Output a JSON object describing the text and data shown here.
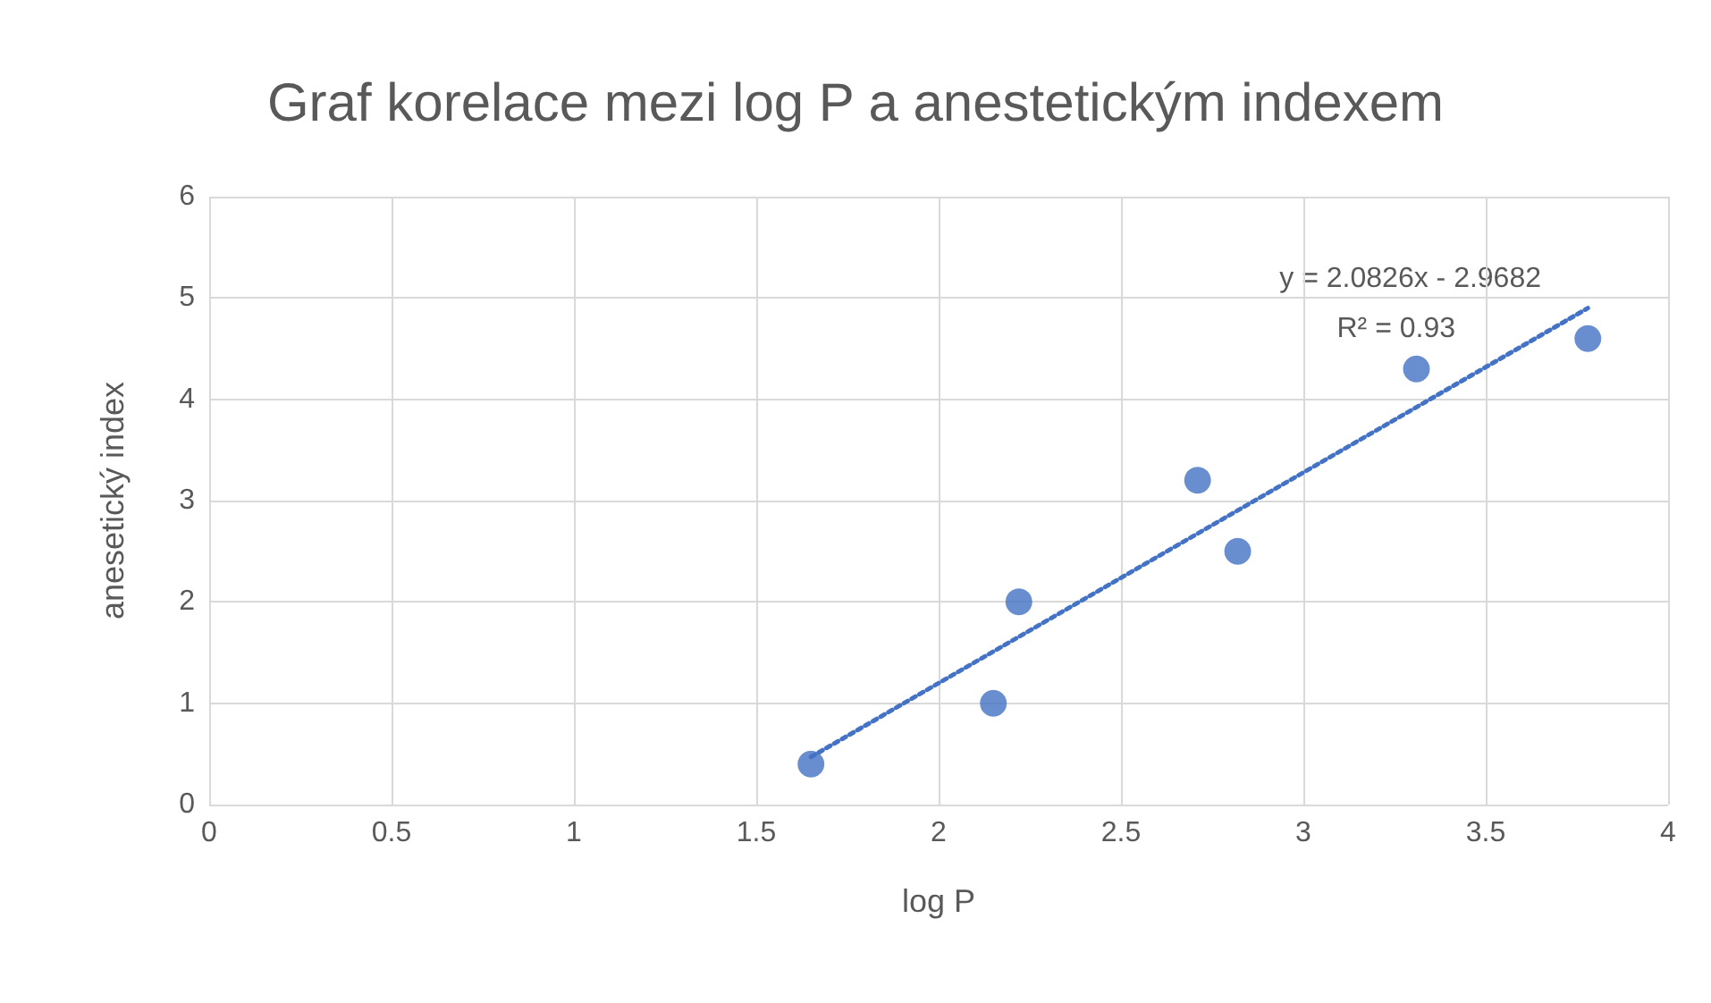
{
  "chart_data": {
    "type": "scatter",
    "title": "Graf korelace mezi log P a anestetickým indexem",
    "xlabel": "log P",
    "ylabel": "anesetický index",
    "series": [
      {
        "type": "scatter",
        "color": "#4472c4",
        "x": [
          1.65,
          2.15,
          2.22,
          2.71,
          2.82,
          3.31,
          3.78
        ],
        "values": [
          0.4,
          1.0,
          2.0,
          3.2,
          2.5,
          4.3,
          4.6
        ],
        "marker": "circle"
      },
      {
        "type": "line",
        "color": "#4472c4",
        "x": [
          1.65,
          3.78
        ],
        "values": [
          0.47,
          4.9
        ],
        "line_style": "dotted",
        "marker": "none"
      }
    ],
    "annotations": [
      "y = 2.0826x - 2.9682",
      "R² = 0.93"
    ],
    "xlim": [
      0,
      4
    ],
    "xticks": [
      0,
      0.5,
      1,
      1.5,
      2,
      2.5,
      3,
      3.5,
      4
    ],
    "ylim": [
      0,
      6
    ],
    "yticks": [
      0,
      1,
      2,
      3,
      4,
      5,
      6
    ],
    "grid": true
  }
}
